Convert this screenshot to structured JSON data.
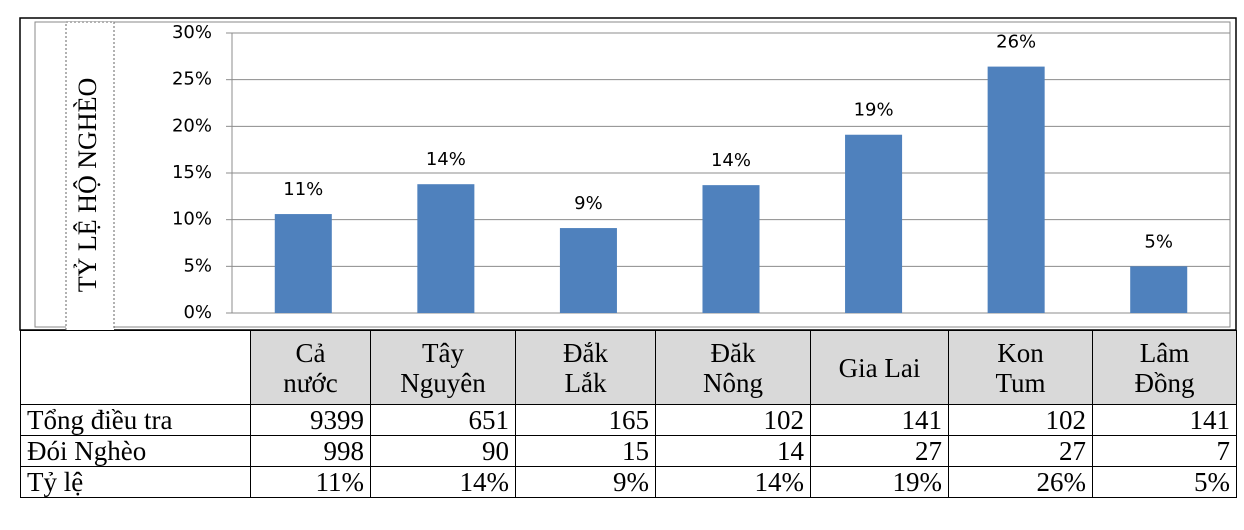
{
  "chart_data": {
    "type": "bar",
    "y_label": "TỶ LỆ HỘ NGHÈO",
    "categories": [
      "Cả nước",
      "Tây Nguyên",
      "Đắk Lắk",
      "Đăk Nông",
      "Gia Lai",
      "Kon Tum",
      "Lâm Đồng"
    ],
    "values": [
      10.6,
      13.8,
      9.1,
      13.7,
      19.1,
      26.4,
      5.0
    ],
    "value_labels": [
      "11%",
      "14%",
      "9%",
      "14%",
      "19%",
      "26%",
      "5%"
    ],
    "color": "#4f81bd",
    "ylim": [
      0,
      30
    ],
    "yticks": [
      {
        "value": 0,
        "label": "0%"
      },
      {
        "value": 5,
        "label": "5%"
      },
      {
        "value": 10,
        "label": "10%"
      },
      {
        "value": 15,
        "label": "15%"
      },
      {
        "value": 20,
        "label": "20%"
      },
      {
        "value": 25,
        "label": "25%"
      },
      {
        "value": 30,
        "label": "30%"
      }
    ],
    "grid": true
  },
  "table": {
    "rows": [
      [
        "Tổng điều tra",
        "9399",
        "651",
        "165",
        "102",
        "141",
        "102",
        "141"
      ],
      [
        "Đói Nghèo",
        "998",
        "90",
        "15",
        "14",
        "27",
        "27",
        "7"
      ],
      [
        "Tỷ lệ",
        "11%",
        "14%",
        "9%",
        "14%",
        "19%",
        "26%",
        "5%"
      ]
    ]
  }
}
